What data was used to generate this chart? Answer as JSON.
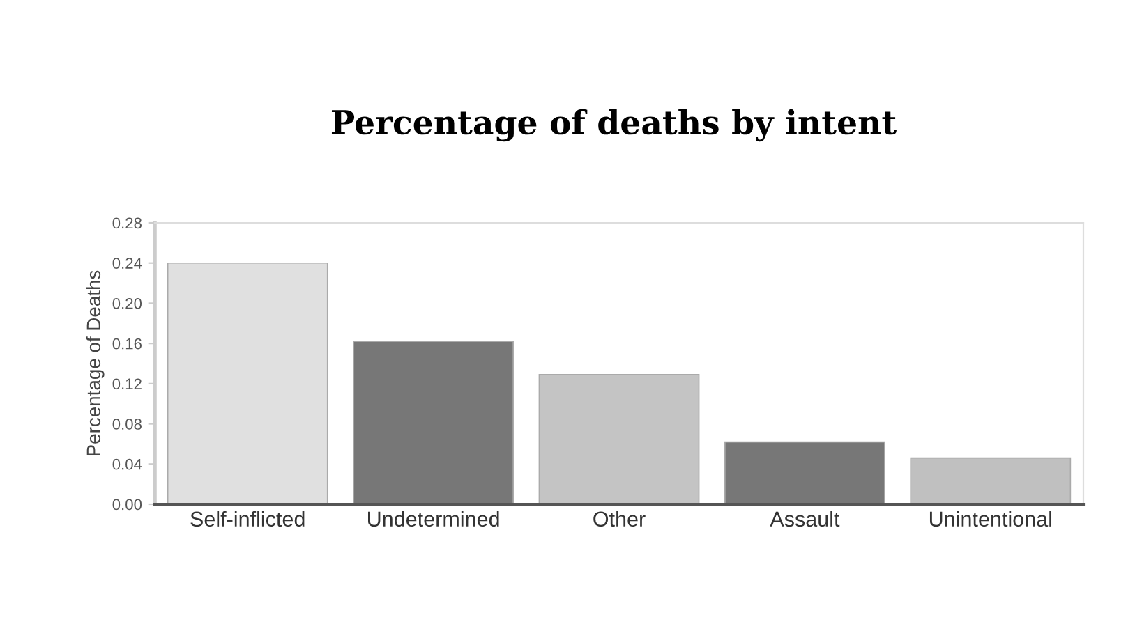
{
  "chart_data": {
    "type": "bar",
    "title": "Percentage of deaths by intent",
    "ylabel": "Percentage of Deaths",
    "categories": [
      "Self-inflicted",
      "Undetermined",
      "Other",
      "Assault",
      "Unintentional"
    ],
    "values": [
      0.24,
      0.162,
      0.129,
      0.062,
      0.046
    ],
    "colors": [
      "#e0e0e0",
      "#777777",
      "#c4c4c4",
      "#777777",
      "#c0c0c0"
    ],
    "ylim": [
      0,
      0.28
    ],
    "yticks": [
      {
        "value": 0,
        "label": "0.00"
      },
      {
        "value": 0.04,
        "label": "0.04"
      },
      {
        "value": 0.08,
        "label": "0.08"
      },
      {
        "value": 0.12,
        "label": "0.12"
      },
      {
        "value": 0.16,
        "label": "0.16"
      },
      {
        "value": 0.2,
        "label": "0.20"
      },
      {
        "value": 0.24,
        "label": "0.24"
      },
      {
        "value": 0.28,
        "label": "0.28"
      }
    ],
    "grid": false
  }
}
